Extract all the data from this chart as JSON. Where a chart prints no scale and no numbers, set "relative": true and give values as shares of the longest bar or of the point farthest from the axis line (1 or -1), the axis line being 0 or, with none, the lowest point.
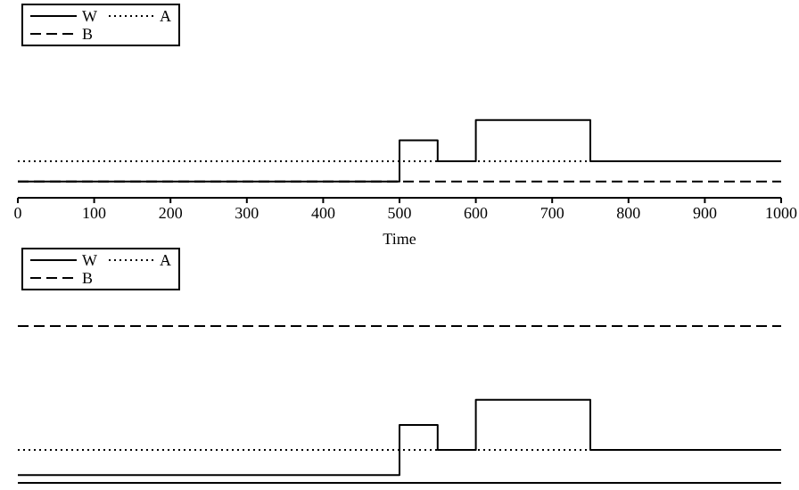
{
  "chart_data": [
    {
      "type": "step",
      "relative": true,
      "xlabel": "Time",
      "xlim": [
        0,
        1000
      ],
      "xticks": [
        0,
        100,
        200,
        300,
        400,
        500,
        600,
        700,
        800,
        900,
        1000
      ],
      "tick_labels": "x",
      "legend": "top left",
      "series": [
        {
          "name": "W",
          "color": "#000000",
          "line_style": "solid",
          "x": [
            0,
            500,
            550,
            600,
            750,
            1000
          ],
          "values": [
            0.21,
            0.74,
            0.47,
            1,
            0.47,
            0.47
          ]
        },
        {
          "name": "A",
          "color": "#000000",
          "line_style": "dotted",
          "x": [
            0,
            1000
          ],
          "values": [
            0.47,
            0.47
          ]
        },
        {
          "name": "B",
          "color": "#000000",
          "line_style": "dashed",
          "x": [
            0,
            1000
          ],
          "values": [
            0.21,
            0.21
          ]
        }
      ]
    },
    {
      "type": "step",
      "relative": true,
      "xlim": [
        0,
        1000
      ],
      "xticks": [
        0,
        100,
        200,
        300,
        400,
        500,
        600,
        700,
        800,
        900,
        1000
      ],
      "tick_labels": false,
      "legend": "top left",
      "series": [
        {
          "name": "W",
          "color": "#000000",
          "line_style": "solid",
          "x": [
            0,
            500,
            550,
            600,
            750,
            1000
          ],
          "values": [
            0.05,
            0.37,
            0.21,
            0.53,
            0.21,
            0.21
          ]
        },
        {
          "name": "A",
          "color": "#000000",
          "line_style": "dotted",
          "x": [
            0,
            1000
          ],
          "values": [
            0.21,
            0.21
          ]
        },
        {
          "name": "B",
          "color": "#000000",
          "line_style": "dashed",
          "x": [
            0,
            1000
          ],
          "values": [
            1,
            1
          ]
        }
      ]
    }
  ]
}
